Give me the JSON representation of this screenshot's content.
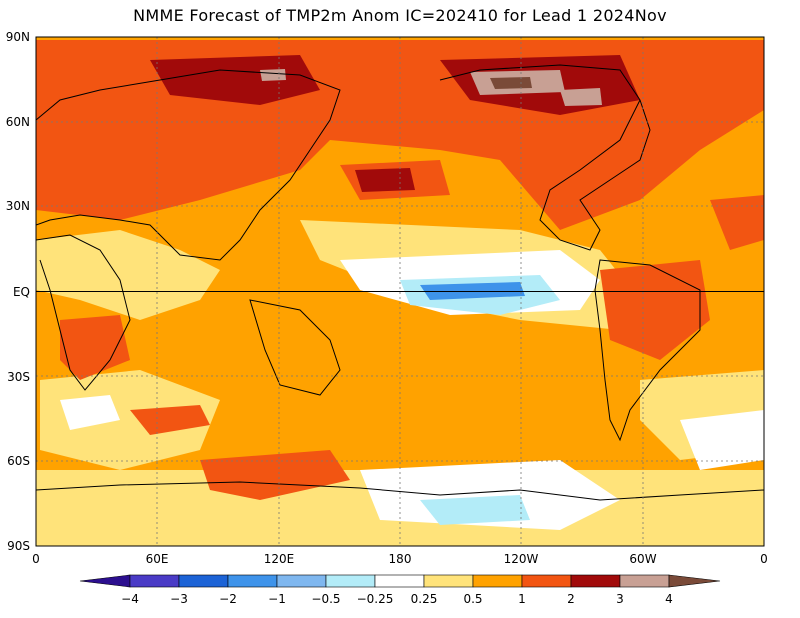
{
  "title": "NMME Forecast of TMP2m Anom IC=202410 for Lead 1 2024Nov",
  "map": {
    "lat_labels": [
      "90N",
      "60N",
      "30N",
      "EQ",
      "30S",
      "60S",
      "90S"
    ],
    "lon_labels": [
      "0",
      "60E",
      "120E",
      "180",
      "120W",
      "60W",
      "0"
    ],
    "colors": {
      "neg4": "#2c0f8f",
      "neg3": "#4a3bc6",
      "neg2": "#1c63d6",
      "neg1": "#3e93ea",
      "neg05": "#7fb7ef",
      "neg025": "#b3ecf8",
      "neutral": "#ffffff",
      "pos025": "#ffe37a",
      "pos05": "#ffa200",
      "pos1": "#f25512",
      "pos2": "#a10a0a",
      "pos3": "#c8a094",
      "pos4": "#7a4a38"
    }
  },
  "colorbar": {
    "labels": [
      "−4",
      "−3",
      "−2",
      "−1",
      "−0.5",
      "−0.25",
      "0.25",
      "0.5",
      "1",
      "2",
      "3",
      "4"
    ]
  }
}
